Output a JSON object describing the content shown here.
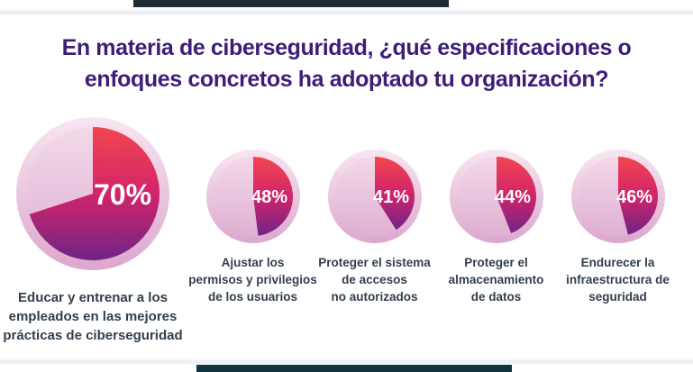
{
  "page": {
    "background": "#ffffff"
  },
  "decor": {
    "top_bar_color": "#1d2a33",
    "bottom_bar_color": "#123440"
  },
  "chart_data": {
    "type": "pie",
    "title": "En materia de ciberseguridad, ¿qué especificaciones o\nenfoques concretos ha adoptado tu organización?",
    "title_color": "#3c1e79",
    "legend_position": "none",
    "grid": false,
    "items": [
      {
        "label": "Educar y entrenar a los\nempleados en las mejores\nprácticas de ciberseguridad",
        "value": 70,
        "value_label": "70%",
        "size": "large"
      },
      {
        "label": "Ajustar los\npermisos y privilegios\nde los usuarios",
        "value": 48,
        "value_label": "48%",
        "size": "small"
      },
      {
        "label": "Proteger el sistema\nde accesos\nno autorizados",
        "value": 41,
        "value_label": "41%",
        "size": "small"
      },
      {
        "label": "Proteger el\nalmacenamiento\nde datos",
        "value": 44,
        "value_label": "44%",
        "size": "small"
      },
      {
        "label": "Endurecer la\ninfraestructura de\nseguridad",
        "value": 46,
        "value_label": "46%",
        "size": "small"
      }
    ],
    "colors": {
      "wedge_gradient": [
        "#f2464f",
        "#d2246a",
        "#6f2486"
      ],
      "remainder_top": "#f3d9e8",
      "remainder_bottom": "#dfb0d2",
      "glow_top": "#f8e6f1",
      "glow_bottom": "#dca7cd",
      "value_text": "#ffffff",
      "label_text": "#323e4e"
    }
  }
}
